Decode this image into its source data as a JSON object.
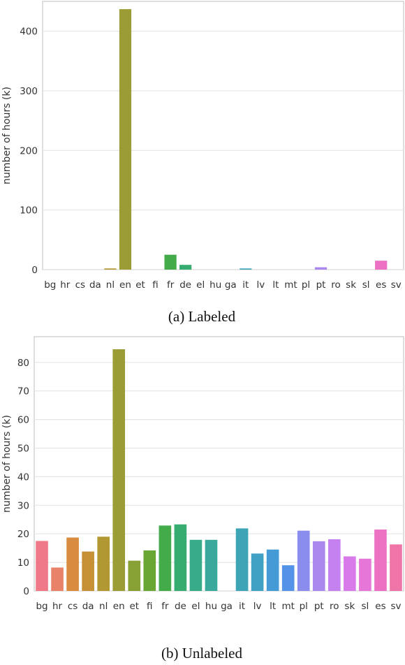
{
  "figure": {
    "captions": [
      "(a) Labeled",
      "(b) Unlabeled"
    ]
  },
  "chart_data": [
    {
      "type": "bar",
      "caption": "(a) Labeled",
      "ylabel": "number of hours (k)",
      "xlabel": "",
      "categories": [
        "bg",
        "hr",
        "cs",
        "da",
        "nl",
        "en",
        "et",
        "fi",
        "fr",
        "de",
        "el",
        "hu",
        "ga",
        "it",
        "lv",
        "lt",
        "mt",
        "pl",
        "pt",
        "ro",
        "sk",
        "sl",
        "es",
        "sv"
      ],
      "values": [
        0,
        0,
        0,
        0,
        2,
        437,
        0,
        0,
        25,
        8,
        0,
        0,
        0,
        2,
        0,
        0,
        0,
        0,
        4,
        0,
        0,
        0,
        15,
        0
      ],
      "colors": [
        "#ef7986",
        "#e88268",
        "#d98c40",
        "#c69136",
        "#b29833",
        "#9c9c37",
        "#87a135",
        "#6aa633",
        "#43ab4a",
        "#36ac70",
        "#38ab88",
        "#3aa99b",
        "#3ba7a8",
        "#3da5b5",
        "#40a1c4",
        "#459bd6",
        "#5493e8",
        "#8a8cee",
        "#aa88ee",
        "#c581ef",
        "#d97aeb",
        "#e676d8",
        "#ec71c2",
        "#ef74a8"
      ],
      "ylim": [
        0,
        450
      ],
      "yticks": [
        0,
        100,
        200,
        300,
        400
      ],
      "grid": true,
      "legend": "none"
    },
    {
      "type": "bar",
      "caption": "(b) Unlabeled",
      "ylabel": "number of hours (k)",
      "xlabel": "",
      "categories": [
        "bg",
        "hr",
        "cs",
        "da",
        "nl",
        "en",
        "et",
        "fi",
        "fr",
        "de",
        "el",
        "hu",
        "ga",
        "it",
        "lv",
        "lt",
        "mt",
        "pl",
        "pt",
        "ro",
        "sk",
        "sl",
        "es",
        "sv"
      ],
      "values": [
        17.5,
        8.2,
        18.7,
        13.8,
        19.0,
        84.6,
        10.6,
        14.2,
        22.9,
        23.3,
        17.9,
        17.9,
        0,
        21.9,
        13.1,
        14.5,
        9.0,
        21.1,
        17.4,
        18.1,
        12.1,
        11.3,
        21.5,
        16.3
      ],
      "colors": [
        "#ef7986",
        "#e88268",
        "#d98c40",
        "#c69136",
        "#b29833",
        "#9c9c37",
        "#87a135",
        "#6aa633",
        "#43ab4a",
        "#36ac70",
        "#38ab88",
        "#3aa99b",
        "#3ba7a8",
        "#3da5b5",
        "#40a1c4",
        "#459bd6",
        "#5493e8",
        "#8a8cee",
        "#aa88ee",
        "#c581ef",
        "#d97aeb",
        "#e676d8",
        "#ec71c2",
        "#ef74a8"
      ],
      "ylim": [
        0,
        89
      ],
      "yticks": [
        0,
        10,
        20,
        30,
        40,
        50,
        60,
        70,
        80
      ],
      "grid": true,
      "legend": "none"
    }
  ]
}
